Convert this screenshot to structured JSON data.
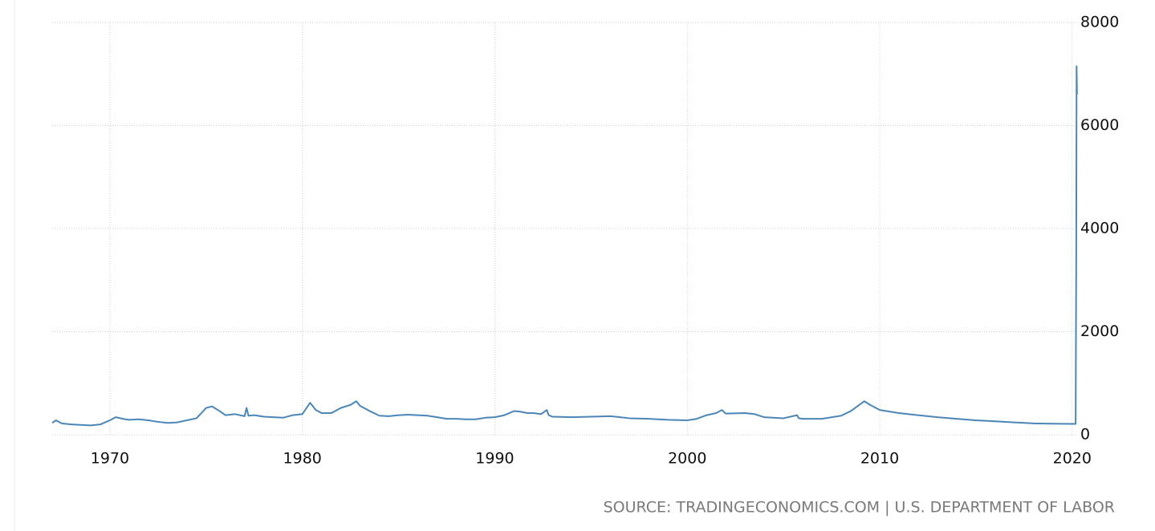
{
  "chart_data": {
    "type": "line",
    "source": "SOURCE: TRADINGECONOMICS.COM | U.S. DEPARTMENT OF LABOR",
    "xlim": [
      1967,
      2020.3
    ],
    "xticks": [
      1970,
      1980,
      1990,
      2000,
      2010,
      2020
    ],
    "ylim": [
      0,
      8000
    ],
    "yticks": [
      0,
      2000,
      4000,
      6000,
      8000
    ],
    "grid": true,
    "series": [
      {
        "color": "#4a86b8",
        "x": [
          1967.0,
          1967.2,
          1967.5,
          1968.0,
          1968.5,
          1969.0,
          1969.5,
          1970.0,
          1970.3,
          1970.8,
          1971.0,
          1971.5,
          1972.0,
          1972.5,
          1973.0,
          1973.5,
          1974.0,
          1974.5,
          1975.0,
          1975.3,
          1975.7,
          1976.0,
          1976.5,
          1977.0,
          1977.1,
          1977.2,
          1977.5,
          1978.0,
          1978.5,
          1979.0,
          1979.5,
          1980.0,
          1980.4,
          1980.7,
          1981.0,
          1981.5,
          1982.0,
          1982.5,
          1982.8,
          1983.0,
          1983.5,
          1984.0,
          1984.5,
          1985.0,
          1985.5,
          1986.0,
          1986.5,
          1987.0,
          1987.5,
          1988.0,
          1988.5,
          1989.0,
          1989.5,
          1990.0,
          1990.5,
          1991.0,
          1991.3,
          1991.7,
          1992.0,
          1992.4,
          1992.7,
          1992.8,
          1993.0,
          1994.0,
          1995.0,
          1996.0,
          1996.5,
          1997.0,
          1998.0,
          1999.0,
          2000.0,
          2000.5,
          2001.0,
          2001.5,
          2001.8,
          2002.0,
          2003.0,
          2003.5,
          2004.0,
          2005.0,
          2005.7,
          2005.8,
          2006.0,
          2007.0,
          2008.0,
          2008.5,
          2009.2,
          2009.5,
          2010.0,
          2011.0,
          2012.0,
          2013.0,
          2014.0,
          2015.0,
          2016.0,
          2017.0,
          2018.0,
          2019.0,
          2020.1,
          2020.18,
          2020.21,
          2020.23,
          2020.25
        ],
        "values": [
          230,
          280,
          220,
          200,
          190,
          180,
          200,
          280,
          340,
          300,
          290,
          300,
          280,
          250,
          230,
          240,
          280,
          320,
          520,
          550,
          460,
          380,
          400,
          360,
          520,
          370,
          380,
          350,
          340,
          330,
          380,
          400,
          620,
          480,
          420,
          420,
          520,
          580,
          650,
          560,
          460,
          370,
          360,
          380,
          390,
          380,
          370,
          340,
          310,
          310,
          300,
          300,
          330,
          340,
          380,
          460,
          450,
          420,
          420,
          400,
          480,
          380,
          350,
          340,
          350,
          360,
          340,
          320,
          310,
          290,
          280,
          310,
          380,
          420,
          480,
          410,
          420,
          400,
          340,
          320,
          380,
          320,
          310,
          310,
          370,
          460,
          650,
          580,
          480,
          420,
          380,
          340,
          310,
          280,
          260,
          240,
          220,
          215,
          210,
          211,
          3300,
          7150,
          6600
        ]
      }
    ]
  }
}
